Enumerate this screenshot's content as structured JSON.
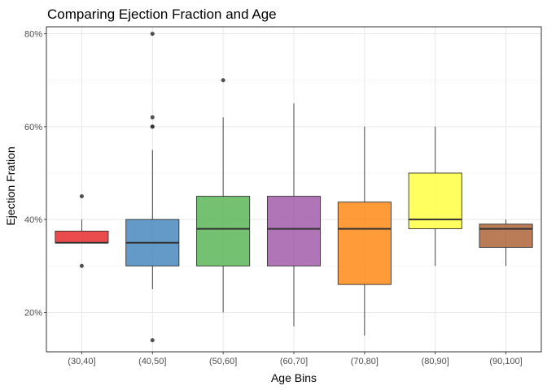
{
  "chart_data": {
    "type": "boxplot",
    "title": "Comparing Ejection Fraction and Age",
    "xlabel": "Age Bins",
    "ylabel": "Ejection Fration",
    "ylim": [
      0.115,
      0.815
    ],
    "yticks": [
      0.2,
      0.4,
      0.6,
      0.8
    ],
    "ytick_labels": [
      "20%",
      "40%",
      "60%",
      "80%"
    ],
    "grid": true,
    "legend": "none",
    "categories": [
      "(30,40]",
      "(40,50]",
      "(50,60]",
      "(60,70]",
      "(70,80]",
      "(80,90]",
      "(90,100]"
    ],
    "boxes": [
      {
        "category": "(30,40]",
        "whisker_low": 0.35,
        "q1": 0.35,
        "median": 0.35,
        "q3": 0.375,
        "whisker_high": 0.4,
        "outliers": [
          0.3,
          0.45
        ],
        "color": "#E41A1C"
      },
      {
        "category": "(40,50]",
        "whisker_low": 0.25,
        "q1": 0.3,
        "median": 0.35,
        "q3": 0.4,
        "whisker_high": 0.55,
        "outliers": [
          0.14,
          0.6,
          0.6,
          0.62,
          0.8
        ],
        "color": "#377EB8"
      },
      {
        "category": "(50,60]",
        "whisker_low": 0.2,
        "q1": 0.3,
        "median": 0.38,
        "q3": 0.45,
        "whisker_high": 0.62,
        "outliers": [
          0.7
        ],
        "color": "#4DAF4A"
      },
      {
        "category": "(60,70]",
        "whisker_low": 0.17,
        "q1": 0.3,
        "median": 0.38,
        "q3": 0.45,
        "whisker_high": 0.65,
        "outliers": [],
        "color": "#984EA3"
      },
      {
        "category": "(70,80]",
        "whisker_low": 0.15,
        "q1": 0.26,
        "median": 0.38,
        "q3": 0.4375,
        "whisker_high": 0.6,
        "outliers": [],
        "color": "#FF7F00"
      },
      {
        "category": "(80,90]",
        "whisker_low": 0.3,
        "q1": 0.38,
        "median": 0.4,
        "q3": 0.5,
        "whisker_high": 0.6,
        "outliers": [],
        "color": "#FFFF33"
      },
      {
        "category": "(90,100]",
        "whisker_low": 0.3,
        "q1": 0.34,
        "median": 0.38,
        "q3": 0.39,
        "whisker_high": 0.4,
        "outliers": [],
        "color": "#A65628"
      }
    ]
  }
}
